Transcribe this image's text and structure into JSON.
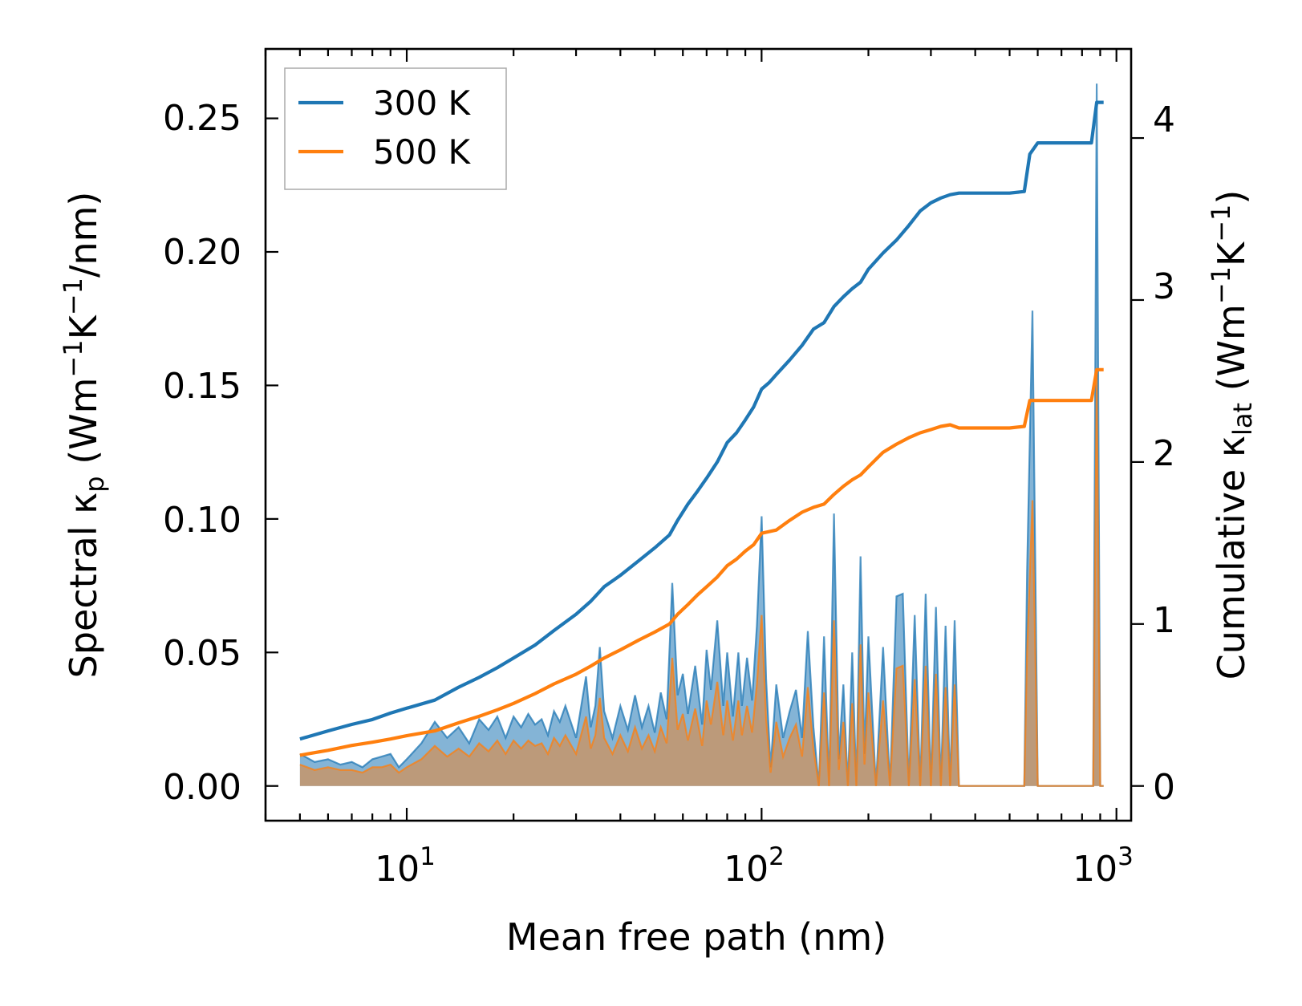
{
  "chart_data": {
    "type": "line",
    "xscale": "log",
    "xlim": [
      4,
      1100
    ],
    "ylim_left": [
      -0.013,
      0.276
    ],
    "ylim_right": [
      -0.2143,
      4.55
    ],
    "xlabel": "Mean free path (nm)",
    "ylabel_left": {
      "main": "Spectral κ",
      "sub": "p",
      "unit": " (Wm",
      "exp1": "−1",
      "mid": "K",
      "exp2": "−1",
      "tail": "/nm)"
    },
    "ylabel_right": {
      "main": "Cumulative κ",
      "sub": "lat",
      "unit": " (Wm",
      "exp1": "−1",
      "mid": "K",
      "exp2": "−1",
      "tail": ")"
    },
    "xticks": [
      {
        "value": 10,
        "base": "10",
        "exp": "1"
      },
      {
        "value": 100,
        "base": "10",
        "exp": "2"
      },
      {
        "value": 1000,
        "base": "10",
        "exp": "3"
      }
    ],
    "yticks_left": [
      "0.00",
      "0.05",
      "0.10",
      "0.15",
      "0.20",
      "0.25"
    ],
    "yticks_right": [
      "0",
      "1",
      "2",
      "3",
      "4"
    ],
    "legend": {
      "position": "top-left",
      "entries": [
        "300 K",
        "500 K"
      ]
    },
    "colors": {
      "s300": "#1f77b4",
      "s500": "#ff7f0e",
      "fill300": "#1f77b4",
      "fill500": "#c5956a"
    },
    "spectral": {
      "x": [
        5.0,
        5.5,
        6.0,
        6.5,
        7.0,
        7.5,
        8.0,
        8.5,
        9.0,
        9.5,
        10,
        11,
        12,
        13,
        14,
        15,
        16,
        17,
        18,
        19,
        20,
        21,
        22,
        23,
        24,
        25,
        26,
        27,
        28,
        30,
        32,
        33,
        34,
        35,
        36,
        38,
        40,
        42,
        44,
        46,
        48,
        50,
        52,
        54,
        56,
        58,
        60,
        62,
        65,
        68,
        70,
        72,
        75,
        78,
        80,
        83,
        86,
        88,
        91,
        94,
        97,
        100,
        103,
        106,
        110,
        115,
        120,
        125,
        130,
        135,
        140,
        145,
        150,
        155,
        160,
        165,
        170,
        175,
        180,
        185,
        190,
        195,
        200,
        210,
        220,
        230,
        240,
        250,
        260,
        270,
        280,
        290,
        300,
        310,
        320,
        330,
        340,
        350,
        360,
        380,
        400,
        450,
        500,
        550,
        560,
        580,
        600,
        620,
        650,
        700,
        750,
        800,
        860,
        880,
        900,
        920
      ],
      "series": [
        {
          "name": "300 K",
          "values": [
            0.012,
            0.009,
            0.01,
            0.008,
            0.009,
            0.007,
            0.01,
            0.011,
            0.012,
            0.007,
            0.01,
            0.016,
            0.024,
            0.018,
            0.022,
            0.016,
            0.025,
            0.021,
            0.026,
            0.018,
            0.026,
            0.022,
            0.027,
            0.023,
            0.025,
            0.019,
            0.028,
            0.024,
            0.03,
            0.018,
            0.041,
            0.022,
            0.03,
            0.052,
            0.028,
            0.018,
            0.03,
            0.021,
            0.034,
            0.022,
            0.03,
            0.02,
            0.035,
            0.025,
            0.076,
            0.034,
            0.042,
            0.027,
            0.045,
            0.023,
            0.051,
            0.036,
            0.062,
            0.03,
            0.05,
            0.026,
            0.05,
            0.03,
            0.048,
            0.032,
            0.06,
            0.101,
            0.04,
            0.007,
            0.038,
            0.018,
            0.028,
            0.036,
            0.018,
            0.058,
            0.022,
            0.0,
            0.056,
            0.0,
            0.102,
            0.01,
            0.038,
            0.0,
            0.05,
            0.0,
            0.086,
            0.012,
            0.056,
            0.0,
            0.052,
            0.0,
            0.071,
            0.072,
            0.0,
            0.064,
            0.0,
            0.072,
            0.0,
            0.067,
            0.0,
            0.06,
            0.0,
            0.062,
            0.0,
            0.0,
            0.0,
            0.0,
            0.0,
            0.0,
            0.08,
            0.178,
            0.0,
            0.0,
            0.0,
            0.0,
            0.0,
            0.0,
            0.0,
            0.263,
            0.0,
            0.0
          ]
        },
        {
          "name": "500 K",
          "values": [
            0.008,
            0.006,
            0.007,
            0.006,
            0.006,
            0.005,
            0.007,
            0.007,
            0.008,
            0.005,
            0.007,
            0.01,
            0.015,
            0.011,
            0.014,
            0.011,
            0.016,
            0.013,
            0.017,
            0.012,
            0.017,
            0.014,
            0.017,
            0.015,
            0.016,
            0.012,
            0.018,
            0.015,
            0.019,
            0.012,
            0.026,
            0.014,
            0.019,
            0.033,
            0.018,
            0.012,
            0.019,
            0.013,
            0.022,
            0.014,
            0.019,
            0.013,
            0.022,
            0.016,
            0.048,
            0.021,
            0.027,
            0.017,
            0.029,
            0.015,
            0.032,
            0.023,
            0.039,
            0.019,
            0.032,
            0.017,
            0.032,
            0.019,
            0.03,
            0.02,
            0.038,
            0.064,
            0.025,
            0.005,
            0.024,
            0.011,
            0.018,
            0.023,
            0.011,
            0.037,
            0.014,
            0.0,
            0.035,
            0.0,
            0.062,
            0.006,
            0.024,
            0.0,
            0.031,
            0.0,
            0.053,
            0.008,
            0.035,
            0.0,
            0.032,
            0.0,
            0.044,
            0.045,
            0.0,
            0.04,
            0.0,
            0.045,
            0.0,
            0.042,
            0.0,
            0.037,
            0.0,
            0.038,
            0.0,
            0.0,
            0.0,
            0.0,
            0.0,
            0.0,
            0.05,
            0.107,
            0.0,
            0.0,
            0.0,
            0.0,
            0.0,
            0.0,
            0.0,
            0.155,
            0.0,
            0.0
          ]
        }
      ]
    },
    "cumulative": {
      "series": [
        {
          "name": "300 K",
          "x": [
            5,
            6,
            7,
            8,
            9,
            10,
            12,
            14,
            16,
            18,
            20,
            23,
            26,
            30,
            33,
            36,
            40,
            45,
            50,
            55,
            58,
            62,
            66,
            70,
            75,
            80,
            85,
            90,
            95,
            100,
            105,
            110,
            120,
            130,
            140,
            150,
            160,
            170,
            180,
            190,
            200,
            220,
            240,
            260,
            280,
            300,
            320,
            340,
            360,
            380,
            400,
            450,
            500,
            550,
            570,
            600,
            650,
            700,
            800,
            850,
            880,
            900,
            920
          ],
          "values": [
            0.29,
            0.34,
            0.38,
            0.41,
            0.45,
            0.48,
            0.53,
            0.61,
            0.67,
            0.73,
            0.79,
            0.87,
            0.96,
            1.06,
            1.14,
            1.23,
            1.3,
            1.39,
            1.47,
            1.55,
            1.64,
            1.74,
            1.82,
            1.9,
            2.0,
            2.12,
            2.18,
            2.26,
            2.34,
            2.45,
            2.49,
            2.54,
            2.63,
            2.72,
            2.82,
            2.86,
            2.96,
            3.02,
            3.07,
            3.11,
            3.19,
            3.29,
            3.37,
            3.46,
            3.55,
            3.6,
            3.63,
            3.65,
            3.66,
            3.66,
            3.66,
            3.66,
            3.66,
            3.67,
            3.9,
            3.97,
            3.97,
            3.97,
            3.97,
            3.97,
            4.22,
            4.22,
            4.22
          ]
        },
        {
          "name": "500 K",
          "x": [
            5,
            6,
            7,
            8,
            9,
            10,
            12,
            14,
            16,
            18,
            20,
            23,
            26,
            30,
            33,
            36,
            40,
            45,
            50,
            55,
            58,
            62,
            66,
            70,
            75,
            80,
            85,
            90,
            95,
            100,
            105,
            110,
            120,
            130,
            140,
            150,
            160,
            170,
            180,
            190,
            200,
            220,
            240,
            260,
            280,
            300,
            320,
            340,
            360,
            380,
            400,
            450,
            500,
            550,
            570,
            600,
            650,
            700,
            800,
            850,
            880,
            900,
            920
          ],
          "values": [
            0.19,
            0.22,
            0.25,
            0.27,
            0.29,
            0.31,
            0.34,
            0.39,
            0.43,
            0.47,
            0.51,
            0.57,
            0.63,
            0.69,
            0.74,
            0.79,
            0.84,
            0.9,
            0.95,
            1.0,
            1.06,
            1.12,
            1.18,
            1.23,
            1.29,
            1.36,
            1.4,
            1.45,
            1.49,
            1.56,
            1.57,
            1.58,
            1.64,
            1.69,
            1.72,
            1.74,
            1.8,
            1.85,
            1.89,
            1.92,
            1.97,
            2.06,
            2.11,
            2.15,
            2.18,
            2.2,
            2.22,
            2.23,
            2.21,
            2.21,
            2.21,
            2.21,
            2.21,
            2.22,
            2.38,
            2.38,
            2.38,
            2.38,
            2.38,
            2.38,
            2.57,
            2.57,
            2.57
          ]
        }
      ]
    }
  }
}
